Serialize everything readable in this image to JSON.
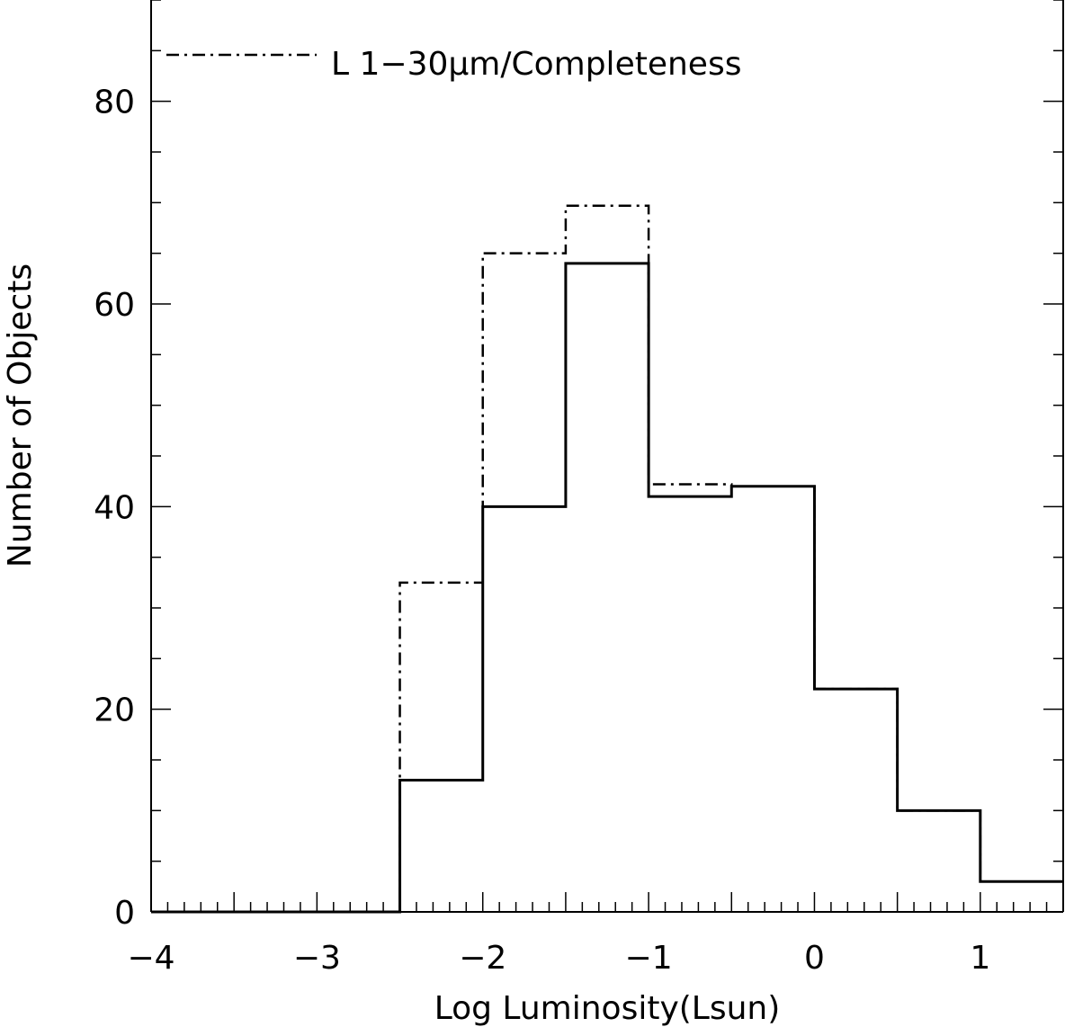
{
  "chart_data": {
    "type": "histogram",
    "xlabel": "Log Luminosity(Lsun)",
    "ylabel": "Number of Objects",
    "xlim": [
      -4,
      1.5
    ],
    "ylim": [
      0,
      90
    ],
    "x_ticks": [
      "−4",
      "−3",
      "−2",
      "−1",
      "0",
      "1"
    ],
    "x_tick_values": [
      -4,
      -3,
      -2,
      -1,
      0,
      1
    ],
    "y_ticks": [
      "0",
      "20",
      "40",
      "60",
      "80"
    ],
    "y_tick_values": [
      0,
      20,
      40,
      60,
      80
    ],
    "bin_edges": [
      -4,
      -3.5,
      -3,
      -2.5,
      -2,
      -1.5,
      -1,
      -0.5,
      0,
      0.5,
      1,
      1.5
    ],
    "series": [
      {
        "style": "solid",
        "values": [
          0,
          0,
          0,
          13,
          40,
          64,
          41,
          42,
          22,
          10,
          3
        ]
      },
      {
        "name": "L 1−30μm/Completeness",
        "style": "dash-dot",
        "values": [
          0,
          0,
          0,
          32.5,
          65,
          69.7,
          42.2,
          42,
          22,
          10,
          3
        ]
      }
    ],
    "legend": {
      "entries": [
        "L 1−30μm/Completeness"
      ],
      "placement": "top-left"
    },
    "grid": false
  }
}
